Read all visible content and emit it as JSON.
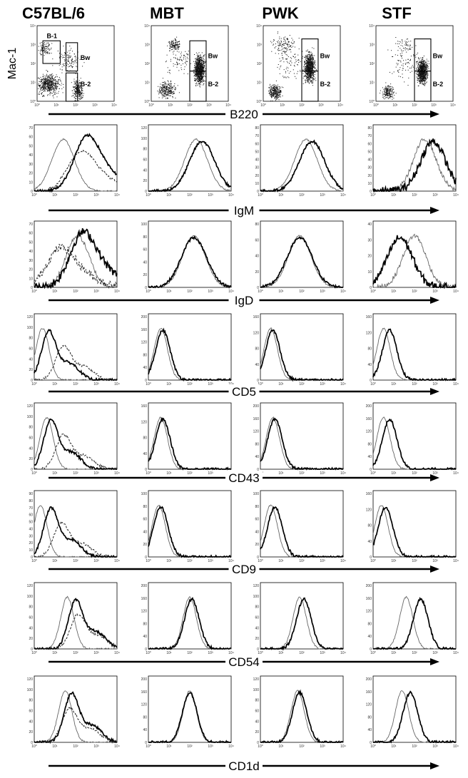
{
  "strains": [
    "C57BL/6",
    "MBT",
    "PWK",
    "STF"
  ],
  "dot_plot": {
    "y_label": "Mac-1",
    "x_marker": "B220",
    "y_ticks": [
      "10⁰",
      "10¹",
      "10²",
      "10³",
      "10⁴"
    ],
    "x_ticks": [
      "10⁰",
      "10¹",
      "10²",
      "10³",
      "10⁴"
    ],
    "gates": [
      [
        "B-1",
        "Bw",
        "B-2"
      ],
      [
        "Bw",
        "B-2"
      ],
      [
        "Bw",
        "B-2"
      ],
      [
        "Bw",
        "B-2"
      ]
    ]
  },
  "histogram_rows": [
    {
      "marker": "IgM",
      "y_ticks": [
        [
          "0",
          "10",
          "20",
          "30",
          "40",
          "50",
          "60",
          "70"
        ],
        [
          "0",
          "20",
          "40",
          "60",
          "80",
          "100",
          "120"
        ],
        [
          "0",
          "10",
          "20",
          "30",
          "40",
          "50",
          "60",
          "70",
          "80"
        ],
        [
          "0",
          "10",
          "20",
          "30",
          "40",
          "50",
          "60",
          "70",
          "80"
        ]
      ]
    },
    {
      "marker": "IgD",
      "y_ticks": [
        [
          "0",
          "10",
          "20",
          "30",
          "40",
          "50",
          "60",
          "70"
        ],
        [
          "0",
          "20",
          "40",
          "60",
          "80",
          "100"
        ],
        [
          "0",
          "20",
          "40",
          "60",
          "80"
        ],
        [
          "0",
          "10",
          "20",
          "30",
          "40"
        ]
      ]
    },
    {
      "marker": "CD5",
      "y_ticks": [
        [
          "0",
          "20",
          "40",
          "60",
          "80",
          "100",
          "120"
        ],
        [
          "0",
          "40",
          "80",
          "120",
          "160",
          "200"
        ],
        [
          "0",
          "40",
          "80",
          "120",
          "160"
        ],
        [
          "0",
          "40",
          "80",
          "120",
          "160"
        ]
      ]
    },
    {
      "marker": "CD43",
      "y_ticks": [
        [
          "0",
          "20",
          "40",
          "60",
          "80",
          "100",
          "120"
        ],
        [
          "0",
          "40",
          "80",
          "120",
          "160"
        ],
        [
          "0",
          "40",
          "80",
          "120",
          "160",
          "200"
        ],
        [
          "0",
          "40",
          "80",
          "120",
          "160",
          "200"
        ]
      ]
    },
    {
      "marker": "CD9",
      "y_ticks": [
        [
          "0",
          "10",
          "20",
          "30",
          "40",
          "50",
          "60",
          "70",
          "80",
          "90"
        ],
        [
          "0",
          "20",
          "40",
          "60",
          "80",
          "100"
        ],
        [
          "0",
          "20",
          "40",
          "60",
          "80",
          "100"
        ],
        [
          "0",
          "40",
          "80",
          "120",
          "160"
        ]
      ]
    },
    {
      "marker": "CD54",
      "y_ticks": [
        [
          "0",
          "20",
          "40",
          "60",
          "80",
          "100",
          "120"
        ],
        [
          "0",
          "40",
          "80",
          "120",
          "160",
          "200"
        ],
        [
          "0",
          "20",
          "40",
          "60",
          "80",
          "100",
          "120"
        ],
        [
          "0",
          "40",
          "80",
          "120",
          "160",
          "200"
        ]
      ]
    },
    {
      "marker": "CD1d",
      "y_ticks": [
        [
          "0",
          "20",
          "40",
          "60",
          "80",
          "100",
          "120"
        ],
        [
          "0",
          "40",
          "80",
          "120",
          "160",
          "200"
        ],
        [
          "0",
          "20",
          "40",
          "60",
          "80",
          "100",
          "120"
        ],
        [
          "0",
          "40",
          "80",
          "120",
          "160",
          "200"
        ]
      ]
    }
  ],
  "x_ticks": [
    "10⁰",
    "10¹",
    "10²",
    "10³",
    "10⁴"
  ],
  "colors": {
    "thick_line": "#000000",
    "thin_line": "#666666",
    "dashed_line": "#222222",
    "dots": "#111111"
  },
  "chart_data": {
    "type": "histogram-grid",
    "columns": [
      "C57BL/6",
      "MBT",
      "PWK",
      "STF"
    ],
    "rows": [
      "B220 vs Mac-1 (dot plot)",
      "IgM",
      "IgD",
      "CD5",
      "CD43",
      "CD9",
      "CD54",
      "CD1d"
    ],
    "x_scale": "log",
    "xlim": [
      1,
      10000
    ],
    "peaks_log10": {
      "IgM": [
        [
          1.4,
          2.5,
          2.2
        ],
        [
          2.3,
          2.6
        ],
        [
          2.2,
          2.5
        ],
        [
          2.5,
          2.9
        ]
      ],
      "IgD": [
        [
          2.1,
          2.3,
          1.2
        ],
        [
          2.2,
          2.2
        ],
        [
          1.9,
          1.9
        ],
        [
          2.0,
          1.3
        ]
      ],
      "CD5": [
        [
          0.4,
          0.7,
          1.4
        ],
        [
          0.6,
          0.7
        ],
        [
          0.5,
          0.6
        ],
        [
          0.5,
          0.8
        ]
      ],
      "CD43": [
        [
          0.6,
          0.8,
          1.4
        ],
        [
          0.6,
          0.7
        ],
        [
          0.6,
          0.7
        ],
        [
          0.5,
          0.8
        ]
      ],
      "CD9": [
        [
          0.3,
          0.8,
          1.3
        ],
        [
          0.5,
          0.6
        ],
        [
          0.5,
          0.7
        ],
        [
          0.4,
          0.6
        ]
      ],
      "CD54": [
        [
          1.6,
          2.0,
          2.1
        ],
        [
          2.0,
          2.1
        ],
        [
          1.9,
          2.1
        ],
        [
          1.6,
          2.3
        ]
      ],
      "CD1d": [
        [
          1.5,
          1.8,
          1.7
        ],
        [
          2.0,
          2.0
        ],
        [
          1.8,
          1.9
        ],
        [
          1.4,
          1.8
        ]
      ]
    }
  }
}
